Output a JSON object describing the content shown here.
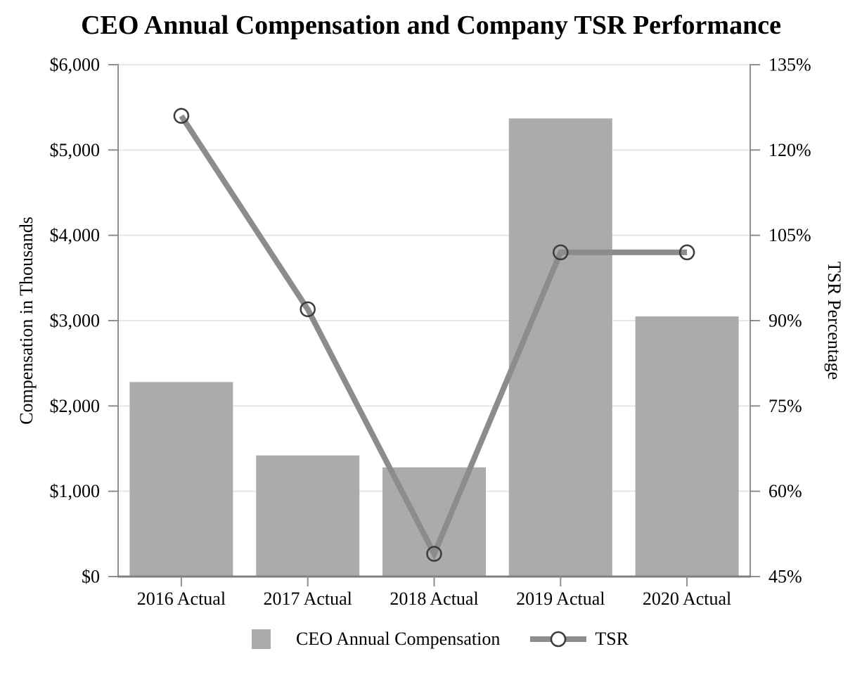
{
  "chart_data": {
    "type": "combo-bar-line",
    "title": "CEO Annual Compensation and Company TSR Performance",
    "categories": [
      "2016 Actual",
      "2017 Actual",
      "2018 Actual",
      "2019 Actual",
      "2020 Actual"
    ],
    "series": [
      {
        "name": "CEO Annual Compensation",
        "type": "bar",
        "axis": "left",
        "color": "#ABABAB",
        "values": [
          2280,
          1420,
          1280,
          5370,
          3050
        ]
      },
      {
        "name": "TSR",
        "type": "line",
        "axis": "right",
        "color": "#8C8C8C",
        "marker": "open-circle",
        "marker_stroke": "#3B3B3B",
        "values": [
          126,
          92,
          49,
          102,
          102
        ]
      }
    ],
    "left_axis": {
      "label": "Compensation in Thousands",
      "min": 0,
      "max": 6000,
      "step": 1000,
      "ticks": [
        "$6,000",
        "$5,000",
        "$4,000",
        "$3,000",
        "$2,000",
        "$1,000",
        "$0"
      ]
    },
    "right_axis": {
      "label": "TSR Percentage",
      "min": 45,
      "max": 135,
      "step": 15,
      "ticks": [
        "135%",
        "120%",
        "105%",
        "90%",
        "75%",
        "60%",
        "45%"
      ]
    },
    "grid": "horizontal",
    "gridline_color": "#E7E7E7",
    "axis_color": "#8E8E8E",
    "legend_position": "bottom-center"
  }
}
